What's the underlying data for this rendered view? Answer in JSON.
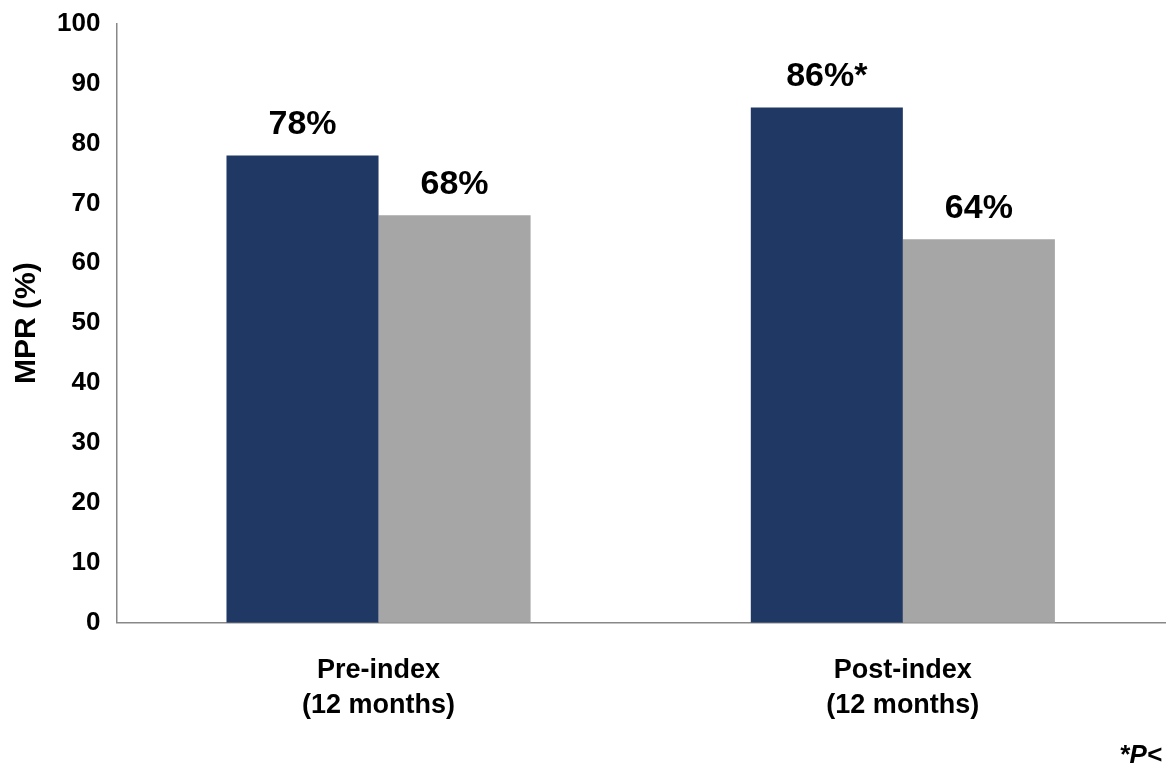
{
  "chart_data": {
    "type": "bar",
    "ylabel": "MPR (%)",
    "categories": [
      "Pre-index\n(12 months)",
      "Post-index\n(12 months)"
    ],
    "series": [
      {
        "color": "#203864",
        "values": [
          78,
          86
        ],
        "value_labels": [
          "78%",
          "86%*"
        ]
      },
      {
        "color": "#a6a6a6",
        "values": [
          68,
          64
        ],
        "value_labels": [
          "68%",
          "64%"
        ]
      }
    ],
    "ylim": [
      0,
      100
    ],
    "yticks": [
      0,
      10,
      20,
      30,
      40,
      50,
      60,
      70,
      80,
      90,
      100
    ],
    "grid": false,
    "legend": false,
    "annotations": [
      "*P<"
    ]
  }
}
